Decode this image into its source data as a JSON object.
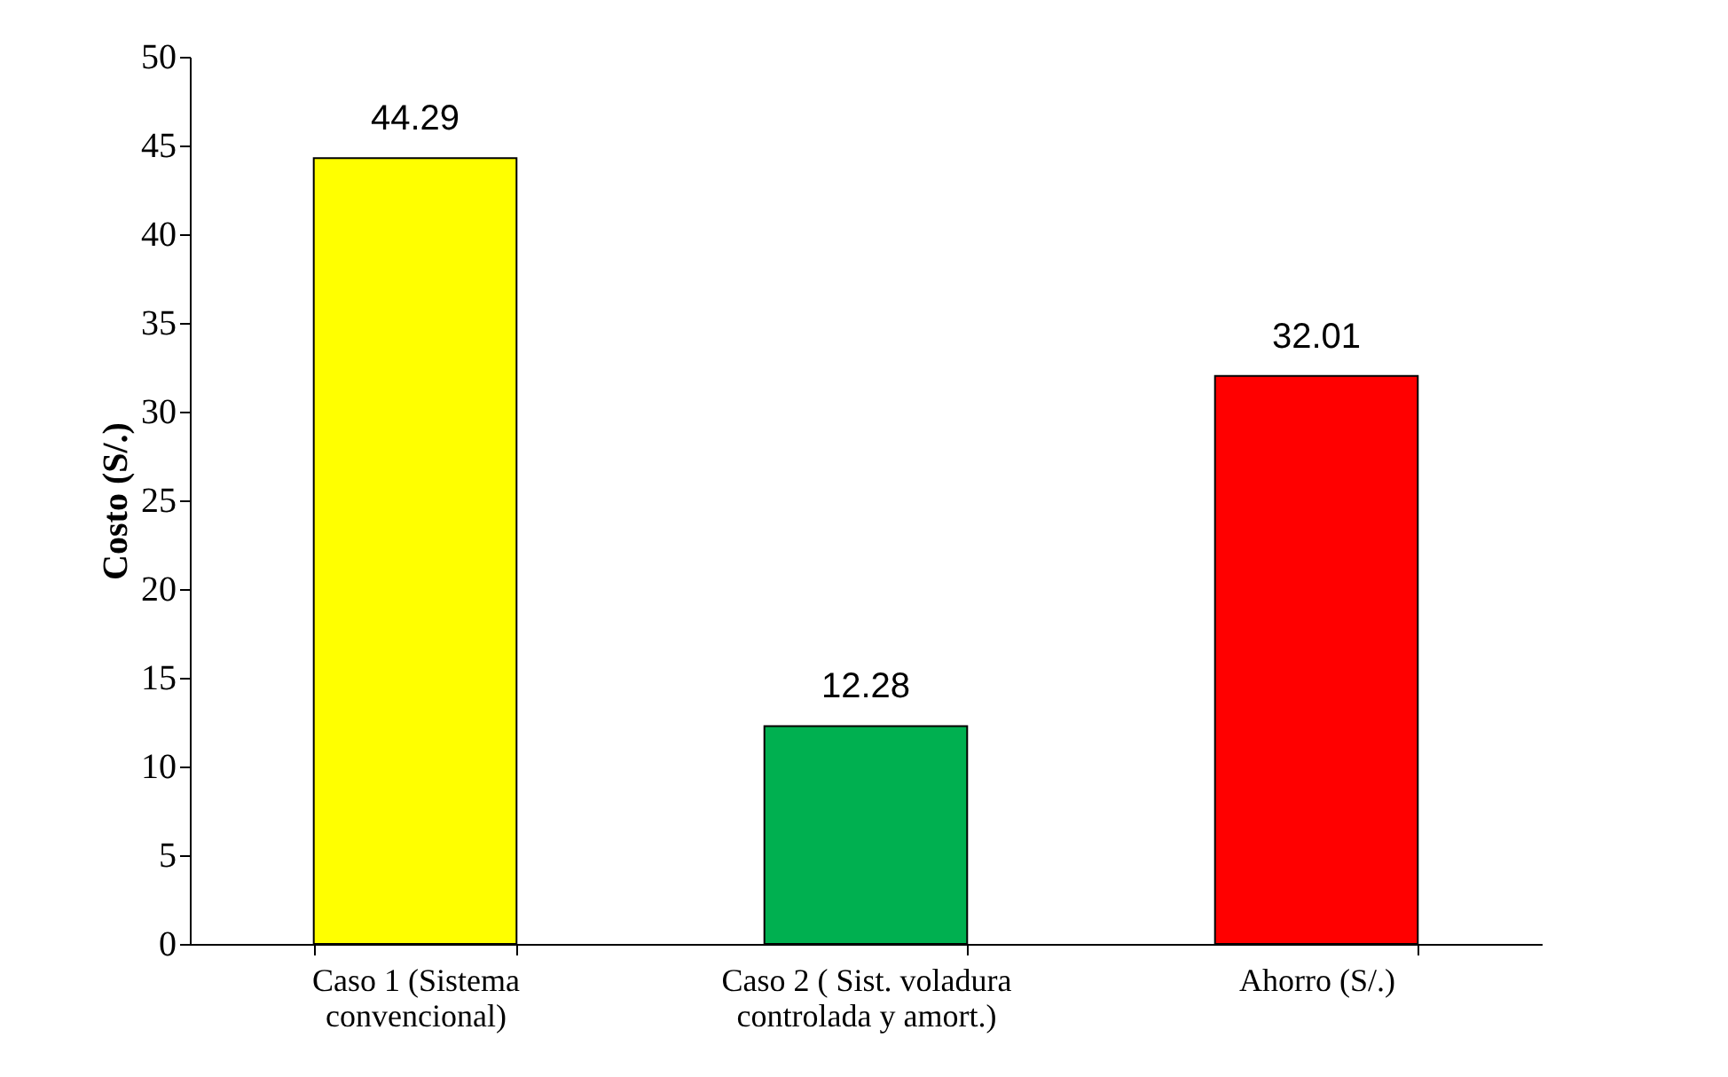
{
  "chart_data": {
    "type": "bar",
    "ylabel": "Costo (S/.)",
    "categories": [
      "Caso 1 (Sistema convencional)",
      "Caso 2 ( Sist. voladura controlada y amort.)",
      "Ahorro (S/.)"
    ],
    "values": [
      44.29,
      12.28,
      32.01
    ],
    "colors": [
      "#ffff00",
      "#00b050",
      "#ff0000"
    ],
    "ylim": [
      0,
      50
    ],
    "yticks": [
      0,
      5,
      10,
      15,
      20,
      25,
      30,
      35,
      40,
      45,
      50
    ],
    "data_labels": true,
    "grid": false
  }
}
